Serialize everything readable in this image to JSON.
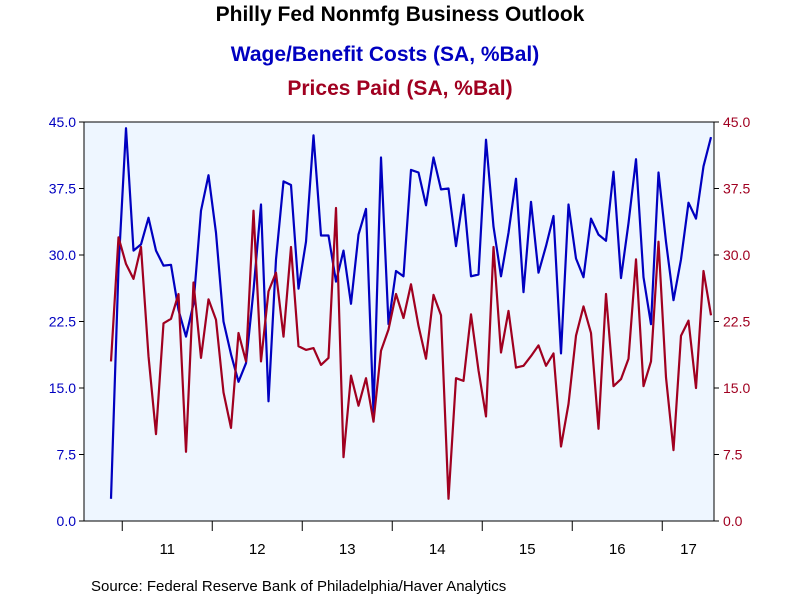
{
  "chart_data": {
    "type": "line",
    "title": "Philly Fed Nonmfg Business Outlook",
    "series": [
      {
        "name": "Wage/Benefit Costs (SA, %Bal)",
        "color": "#0000c0",
        "axis": "left",
        "values": [
          2.5,
          28.5,
          44.3,
          30.5,
          31.2,
          34.2,
          30.5,
          28.8,
          28.9,
          23.8,
          20.8,
          24.5,
          35.0,
          39.0,
          32.5,
          22.5,
          18.8,
          15.7,
          17.8,
          26.0,
          35.7,
          13.5,
          29.5,
          38.3,
          37.9,
          26.2,
          31.5,
          43.5,
          32.2,
          32.2,
          27.0,
          30.5,
          24.5,
          32.3,
          35.2,
          12.2,
          41.0,
          22.2,
          28.2,
          27.6,
          39.6,
          39.3,
          35.6,
          41.0,
          37.4,
          37.5,
          31.0,
          36.8,
          27.6,
          27.8,
          43.0,
          33.2,
          27.6,
          32.5,
          38.6,
          25.8,
          36.0,
          28.0,
          31.0,
          34.4,
          18.9,
          35.7,
          29.6,
          27.5,
          34.1,
          32.3,
          31.6,
          39.4,
          27.4,
          33.6,
          40.8,
          27.5,
          22.2,
          39.3,
          31.5,
          24.9,
          29.5,
          35.9,
          34.1,
          40.0,
          43.3
        ]
      },
      {
        "name": "Prices Paid (SA, %Bal)",
        "color": "#a00020",
        "axis": "right",
        "values": [
          18.0,
          32.0,
          29.0,
          27.3,
          30.9,
          18.6,
          9.8,
          22.3,
          22.8,
          25.6,
          7.8,
          26.9,
          18.4,
          25.0,
          22.7,
          14.5,
          10.5,
          21.2,
          18.0,
          35.0,
          18.0,
          25.9,
          28.0,
          20.8,
          30.9,
          19.7,
          19.3,
          19.5,
          17.6,
          18.4,
          35.3,
          7.2,
          16.4,
          13.0,
          16.1,
          11.2,
          19.2,
          21.6,
          25.6,
          22.9,
          26.7,
          22.0,
          18.3,
          25.5,
          23.2,
          2.5,
          16.1,
          15.8,
          23.3,
          17.0,
          11.8,
          30.9,
          19.0,
          23.7,
          17.3,
          17.5,
          18.6,
          19.8,
          17.5,
          18.9,
          8.4,
          13.2,
          20.9,
          24.2,
          21.2,
          10.4,
          25.6,
          15.2,
          16.0,
          18.3,
          29.5,
          15.2,
          18.0,
          31.5,
          16.2,
          8.0,
          20.9,
          22.6,
          15.0,
          28.2,
          23.2
        ]
      }
    ],
    "yleft": {
      "min": 0,
      "max": 45,
      "ticks": [
        "0.0",
        "7.5",
        "15.0",
        "22.5",
        "30.0",
        "37.5",
        "45.0"
      ]
    },
    "yright": {
      "min": 0,
      "max": 45,
      "ticks": [
        "0.0",
        "7.5",
        "15.0",
        "22.5",
        "30.0",
        "37.5",
        "45.0"
      ]
    },
    "x_start": "2010-11",
    "x_end": "2017-07",
    "year_labels": [
      "11",
      "12",
      "13",
      "14",
      "15",
      "16",
      "17"
    ],
    "background_color": "#eef6ff",
    "grid": false
  },
  "source": "Source:  Federal Reserve Bank of Philadelphia/Haver Analytics"
}
